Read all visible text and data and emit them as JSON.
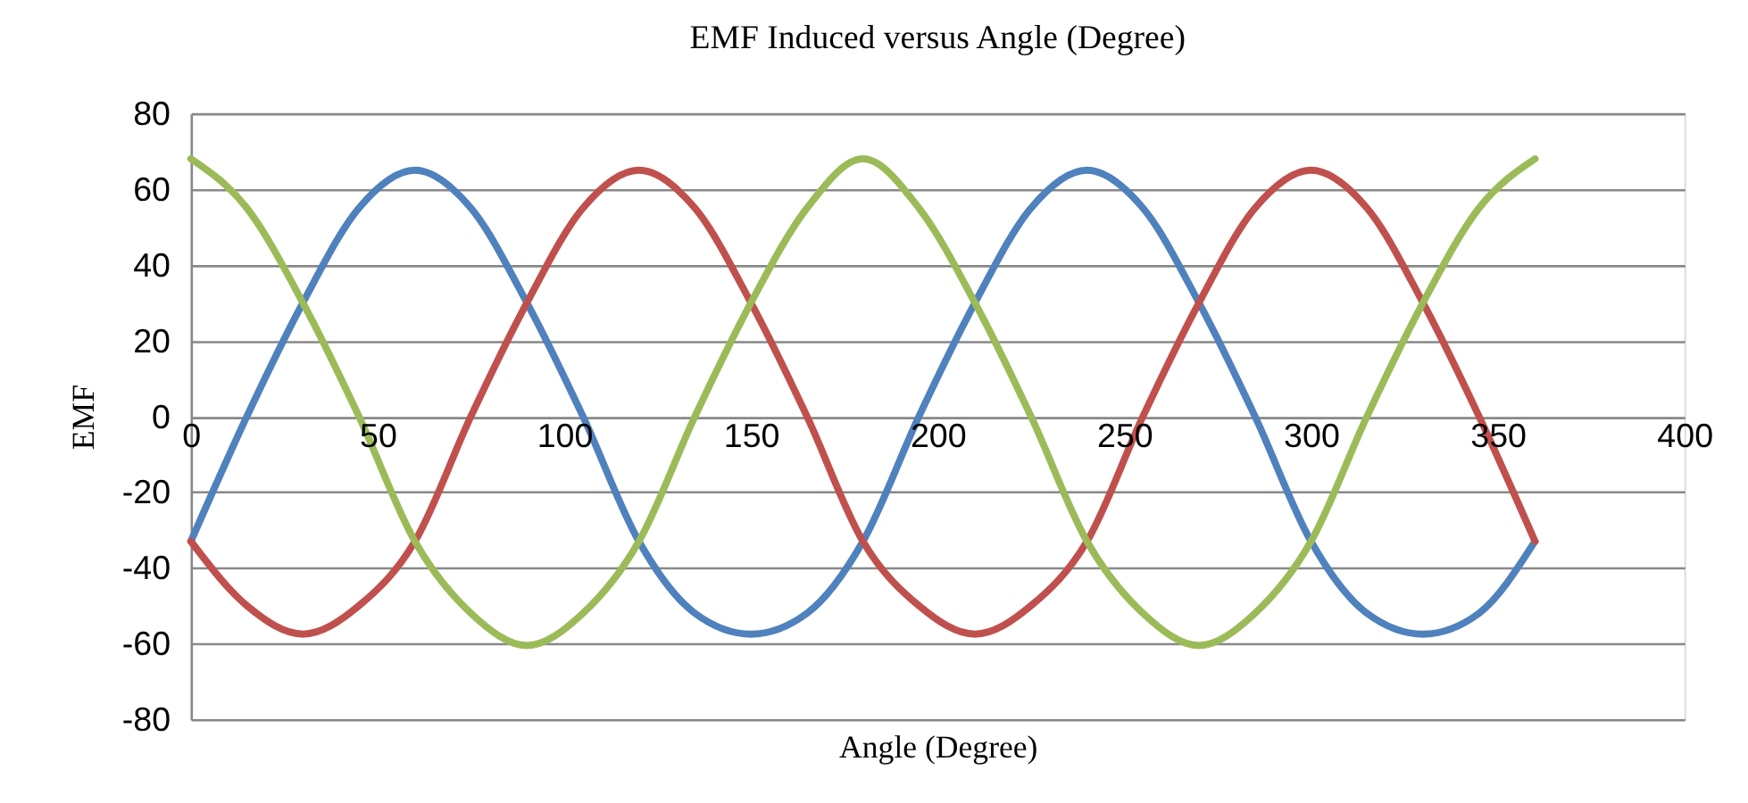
{
  "chart_data": {
    "type": "line",
    "title": "EMF Induced versus Angle (Degree)",
    "xlabel": "Angle (Degree)",
    "ylabel": "EMF",
    "x": [
      0,
      15,
      30,
      45,
      60,
      75,
      90,
      105,
      120,
      135,
      150,
      165,
      180,
      195,
      210,
      225,
      240,
      255,
      270,
      285,
      300,
      315,
      330,
      345,
      360
    ],
    "series": [
      {
        "color": "#4f81bd",
        "values": [
          -33,
          0,
          30,
          55,
          65,
          55,
          30,
          0,
          -33,
          -52,
          -57.5,
          -52,
          -33,
          0,
          30,
          55,
          65,
          55,
          30,
          0,
          -33,
          -52,
          -57.5,
          -52,
          -33
        ]
      },
      {
        "color": "#c0504d",
        "values": [
          -33,
          -50,
          -57.5,
          -50,
          -33,
          0,
          30,
          55,
          65,
          55,
          30,
          0,
          -33,
          -50,
          -57.5,
          -50,
          -33,
          0,
          30,
          55,
          65,
          55,
          30,
          0,
          -33
        ]
      },
      {
        "color": "#9bbb59",
        "values": [
          68,
          55,
          30,
          0,
          -33,
          -52,
          -60.5,
          -52,
          -33,
          0,
          30,
          55,
          68,
          55,
          30,
          0,
          -33,
          -52,
          -60.5,
          -52,
          -33,
          0,
          30,
          55,
          68
        ]
      }
    ],
    "xlim": [
      0,
      400
    ],
    "xticks": [
      0,
      50,
      100,
      150,
      200,
      250,
      300,
      350,
      400
    ],
    "ylim": [
      -80,
      80
    ],
    "yticks": [
      -80,
      -60,
      -40,
      -20,
      0,
      20,
      40,
      60,
      80
    ],
    "grid": "y",
    "legend": false,
    "marker": "none",
    "line_style": "solid"
  }
}
